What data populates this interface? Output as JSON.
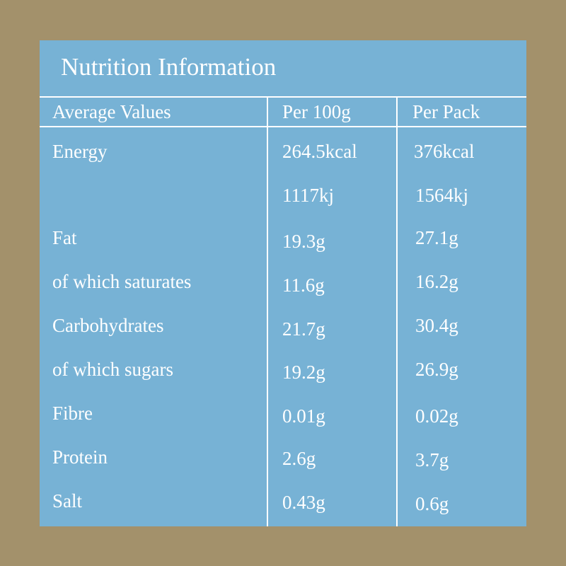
{
  "title": "Nutrition Information",
  "headers": [
    "Average Values",
    "Per 100g",
    "Per Pack"
  ],
  "rows": [
    {
      "label": "Energy",
      "per100": "264.5kcal",
      "perPack": "376kcal"
    },
    {
      "label": "",
      "per100": "1117kj",
      "perPack": "1564kj"
    },
    {
      "label": "Fat",
      "per100": "19.3g",
      "perPack": "27.1g"
    },
    {
      "label": "of which saturates",
      "per100": "11.6g",
      "perPack": "16.2g"
    },
    {
      "label": "Carbohydrates",
      "per100": "21.7g",
      "perPack": "30.4g"
    },
    {
      "label": "of which sugars",
      "per100": "19.2g",
      "perPack": "26.9g"
    },
    {
      "label": "Fibre",
      "per100": "0.01g",
      "perPack": "0.02g"
    },
    {
      "label": "Protein",
      "per100": "2.6g",
      "perPack": "3.7g"
    },
    {
      "label": "Salt",
      "per100": "0.43g",
      "perPack": "0.6g"
    }
  ],
  "colors": {
    "background": "#a3916b",
    "panel": "#77b2d5",
    "text": "#ffffff"
  }
}
